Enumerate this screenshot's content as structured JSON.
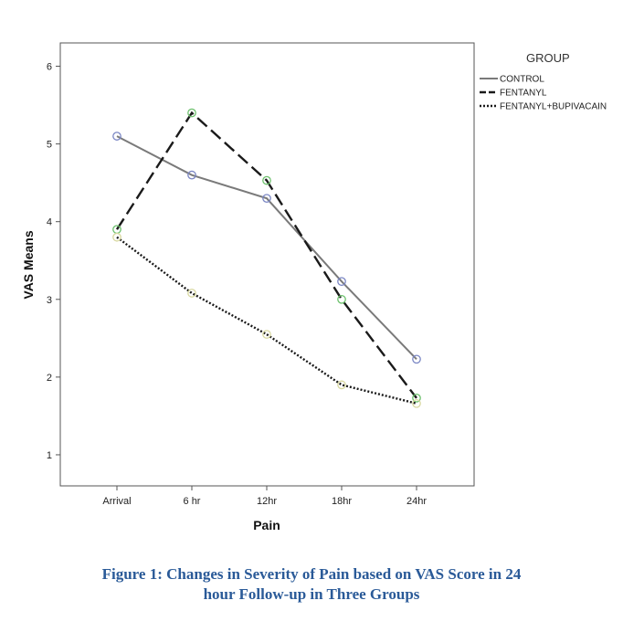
{
  "chart_data": {
    "type": "line",
    "xlabel": "Pain",
    "ylabel": "VAS Means",
    "categories": [
      "Arrival",
      "6 hr",
      "12hr",
      "18hr",
      "24hr"
    ],
    "ylim": [
      0.6,
      6.3
    ],
    "yticks": [
      1,
      2,
      3,
      4,
      5,
      6
    ],
    "grid": false,
    "legend": {
      "title": "GROUP",
      "placement": "right"
    },
    "series": [
      {
        "name": "CONTROL",
        "values": [
          5.1,
          4.6,
          4.3,
          3.23,
          2.23
        ],
        "line": "solid",
        "stroke": "#7a7a7a",
        "marker_color": "#7a86c4"
      },
      {
        "name": "FENTANYL",
        "values": [
          3.9,
          5.4,
          4.53,
          3.0,
          1.73
        ],
        "line": "dashed",
        "stroke": "#1a1a1a",
        "marker_color": "#6cc06c"
      },
      {
        "name": "FENTANYL+BUPIVACAIN",
        "values": [
          3.8,
          3.08,
          2.55,
          1.9,
          1.66
        ],
        "line": "dotted",
        "stroke": "#1a1a1a",
        "marker_color": "#d8d8a0"
      }
    ]
  },
  "caption": {
    "line1": "Figure 1: Changes in Severity of Pain based on VAS Score in 24",
    "line2": "hour Follow-up in Three Groups"
  }
}
